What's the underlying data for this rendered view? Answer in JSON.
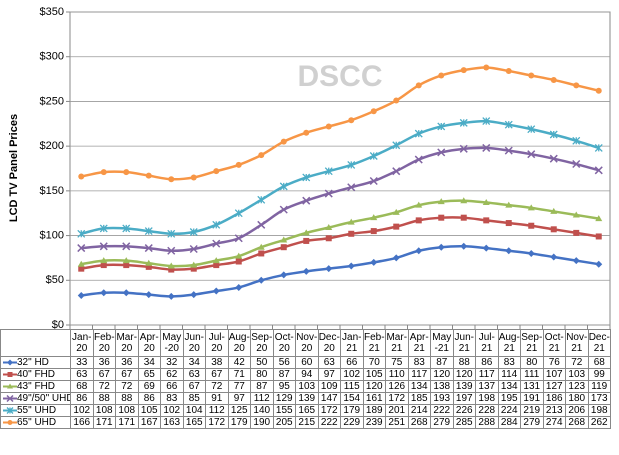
{
  "chart_data": {
    "type": "line",
    "y_label": "LCD TV Panel Prices",
    "watermark": "DSCC",
    "categories": [
      "Jan-20",
      "Feb-20",
      "Mar-20",
      "Apr-20",
      "May-20",
      "Jun-20",
      "Jul-20",
      "Aug-20",
      "Sep-20",
      "Oct-20",
      "Nov-20",
      "Dec-20",
      "Jan-21",
      "Feb-21",
      "Mar-21",
      "Apr-21",
      "May-21",
      "Jun-21",
      "Jul-21",
      "Aug-21",
      "Sep-21",
      "Oct-21",
      "Nov-21",
      "Dec-21"
    ],
    "series": [
      {
        "name": "32\" HD",
        "color": "#4472c4",
        "marker": "diamond",
        "values": [
          33,
          36,
          36,
          34,
          32,
          34,
          38,
          42,
          50,
          56,
          60,
          63,
          66,
          70,
          75,
          83,
          87,
          88,
          86,
          83,
          80,
          76,
          72,
          68
        ]
      },
      {
        "name": "40\" FHD",
        "color": "#c0504d",
        "marker": "square",
        "values": [
          63,
          67,
          67,
          65,
          62,
          63,
          67,
          71,
          80,
          87,
          94,
          97,
          102,
          105,
          110,
          117,
          120,
          120,
          117,
          114,
          111,
          107,
          103,
          99
        ]
      },
      {
        "name": "43\" FHD",
        "color": "#9bbb59",
        "marker": "triangle",
        "values": [
          68,
          72,
          72,
          69,
          66,
          67,
          72,
          77,
          87,
          95,
          103,
          109,
          115,
          120,
          126,
          134,
          138,
          139,
          137,
          134,
          131,
          127,
          123,
          119
        ]
      },
      {
        "name": "49\"/50\" UHD",
        "color": "#8064a2",
        "marker": "x",
        "values": [
          86,
          88,
          88,
          86,
          83,
          85,
          91,
          97,
          112,
          129,
          139,
          147,
          154,
          161,
          172,
          185,
          193,
          197,
          198,
          195,
          191,
          186,
          180,
          173
        ]
      },
      {
        "name": "55\" UHD",
        "color": "#4bacc6",
        "marker": "star",
        "values": [
          102,
          108,
          108,
          105,
          102,
          104,
          112,
          125,
          140,
          155,
          165,
          172,
          179,
          189,
          201,
          214,
          222,
          226,
          228,
          224,
          219,
          213,
          206,
          198
        ]
      },
      {
        "name": "65\" UHD",
        "color": "#f79646",
        "marker": "circle",
        "values": [
          166,
          171,
          171,
          167,
          163,
          165,
          172,
          179,
          190,
          205,
          215,
          222,
          229,
          239,
          251,
          268,
          279,
          285,
          288,
          284,
          279,
          274,
          268,
          262
        ]
      }
    ],
    "ylim": [
      0,
      350
    ],
    "yticks": [
      {
        "value": 0,
        "label": "$0"
      },
      {
        "value": 50,
        "label": "$50"
      },
      {
        "value": 100,
        "label": "$100"
      },
      {
        "value": 150,
        "label": "$150"
      },
      {
        "value": 200,
        "label": "$200"
      },
      {
        "value": 250,
        "label": "$250"
      },
      {
        "value": 300,
        "label": "$300"
      },
      {
        "value": 350,
        "label": "$350"
      }
    ],
    "grid": true
  }
}
